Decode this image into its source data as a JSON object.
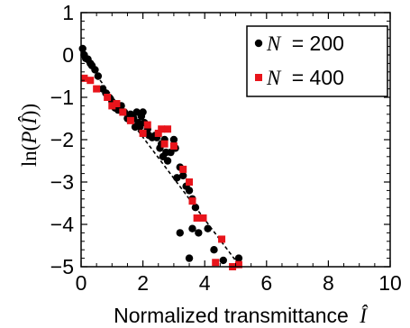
{
  "chart_data": {
    "type": "scatter",
    "xlabel": "Normalized transmittance",
    "xlabel_symbol": "Î",
    "ylabel_prefix": "ln(",
    "ylabel_function": "P",
    "ylabel_open": "(",
    "ylabel_symbol": "Î",
    "ylabel_close": "))",
    "xlim": [
      0,
      10
    ],
    "ylim": [
      -5,
      1
    ],
    "xticks": [
      0,
      2,
      4,
      6,
      8,
      10
    ],
    "yticks": [
      -5,
      -4,
      -3,
      -2,
      -1,
      0,
      1
    ],
    "grid": false,
    "legend_position": "top-right",
    "series": [
      {
        "name": "N = 200",
        "legend_var": "N",
        "legend_value": "= 200",
        "marker": "circle",
        "color": "#000000",
        "points": [
          [
            0.05,
            0.15
          ],
          [
            0.1,
            0.0
          ],
          [
            0.15,
            -0.08
          ],
          [
            0.22,
            -0.1
          ],
          [
            0.3,
            -0.2
          ],
          [
            0.35,
            -0.25
          ],
          [
            0.45,
            -0.35
          ],
          [
            0.55,
            -0.5
          ],
          [
            0.7,
            -0.8
          ],
          [
            0.8,
            -0.9
          ],
          [
            0.9,
            -1.0
          ],
          [
            1.0,
            -1.1
          ],
          [
            1.1,
            -1.25
          ],
          [
            1.2,
            -1.3
          ],
          [
            1.3,
            -1.2
          ],
          [
            1.4,
            -1.35
          ],
          [
            1.5,
            -1.5
          ],
          [
            1.6,
            -1.4
          ],
          [
            1.7,
            -1.5
          ],
          [
            1.75,
            -1.7
          ],
          [
            1.8,
            -1.35
          ],
          [
            1.85,
            -1.6
          ],
          [
            1.9,
            -1.7
          ],
          [
            1.95,
            -1.45
          ],
          [
            2.0,
            -1.35
          ],
          [
            2.05,
            -1.6
          ],
          [
            2.15,
            -1.75
          ],
          [
            2.2,
            -1.9
          ],
          [
            2.3,
            -1.95
          ],
          [
            2.4,
            -1.9
          ],
          [
            2.45,
            -1.95
          ],
          [
            2.55,
            -2.2
          ],
          [
            2.6,
            -2.1
          ],
          [
            2.65,
            -2.4
          ],
          [
            2.7,
            -2.0
          ],
          [
            2.75,
            -2.3
          ],
          [
            2.8,
            -2.5
          ],
          [
            2.9,
            -2.3
          ],
          [
            3.0,
            -2.0
          ],
          [
            3.05,
            -2.2
          ],
          [
            3.1,
            -2.9
          ],
          [
            3.2,
            -2.65
          ],
          [
            3.3,
            -2.85
          ],
          [
            3.4,
            -3.1
          ],
          [
            3.5,
            -3.2
          ],
          [
            3.6,
            -3.4
          ],
          [
            3.7,
            -3.6
          ],
          [
            3.2,
            -4.2
          ],
          [
            3.6,
            -4.1
          ],
          [
            3.8,
            -4.2
          ],
          [
            3.5,
            -4.8
          ],
          [
            4.1,
            -4.1
          ],
          [
            4.3,
            -4.6
          ],
          [
            4.6,
            -4.85
          ],
          [
            5.1,
            -4.8
          ]
        ]
      },
      {
        "name": "N = 400",
        "legend_var": "N",
        "legend_value": "= 400",
        "marker": "square",
        "color": "#e8141b",
        "points": [
          [
            0.1,
            -0.55
          ],
          [
            0.3,
            -0.6
          ],
          [
            0.5,
            -0.8
          ],
          [
            0.85,
            -1.0
          ],
          [
            1.0,
            -1.2
          ],
          [
            1.15,
            -1.15
          ],
          [
            1.35,
            -1.35
          ],
          [
            1.6,
            -1.55
          ],
          [
            2.0,
            -1.85
          ],
          [
            2.15,
            -1.65
          ],
          [
            2.5,
            -1.85
          ],
          [
            2.6,
            -1.75
          ],
          [
            2.7,
            -2.1
          ],
          [
            2.8,
            -1.75
          ],
          [
            3.0,
            -2.15
          ],
          [
            3.3,
            -2.7
          ],
          [
            3.5,
            -3.0
          ],
          [
            3.6,
            -3.45
          ],
          [
            3.75,
            -3.85
          ],
          [
            3.95,
            -3.85
          ],
          [
            4.35,
            -4.9
          ],
          [
            4.55,
            -4.35
          ],
          [
            4.9,
            -5.0
          ],
          [
            5.1,
            -4.95
          ]
        ]
      }
    ],
    "fit_line": {
      "style": "dashed",
      "color": "#000000",
      "points": [
        [
          0,
          0
        ],
        [
          5.15,
          -5
        ]
      ]
    }
  }
}
